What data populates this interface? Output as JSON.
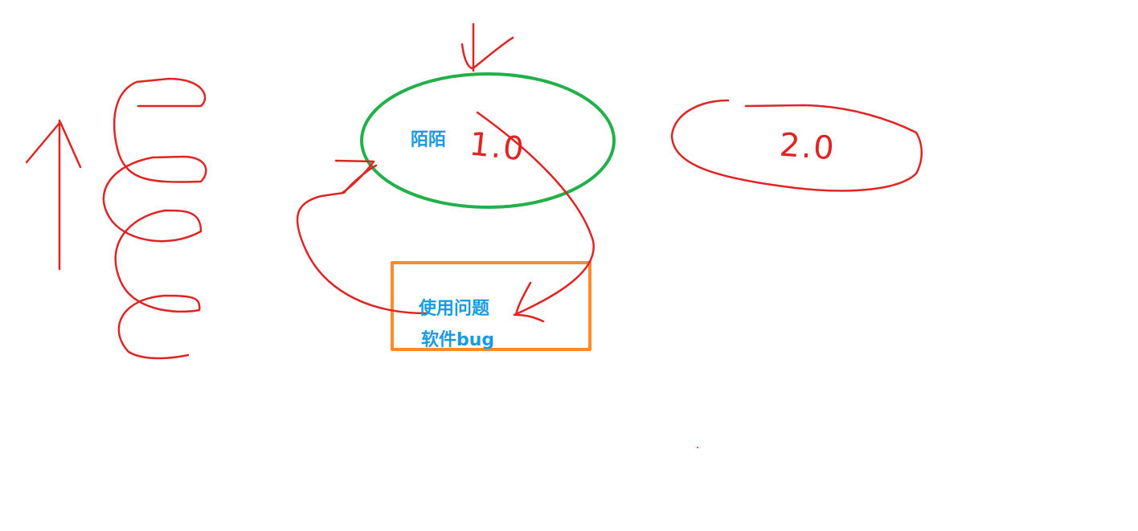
{
  "labels": {
    "momo": "陌陌",
    "v1": "1.0",
    "v2": "2.0",
    "usage_issue": "使用问题",
    "software_bug": "软件bug"
  },
  "colors": {
    "ink_red": "#e02424",
    "ellipse_green": "#22b04a",
    "box_orange": "#ff8a2b",
    "label_blue": "#1a9be0"
  }
}
